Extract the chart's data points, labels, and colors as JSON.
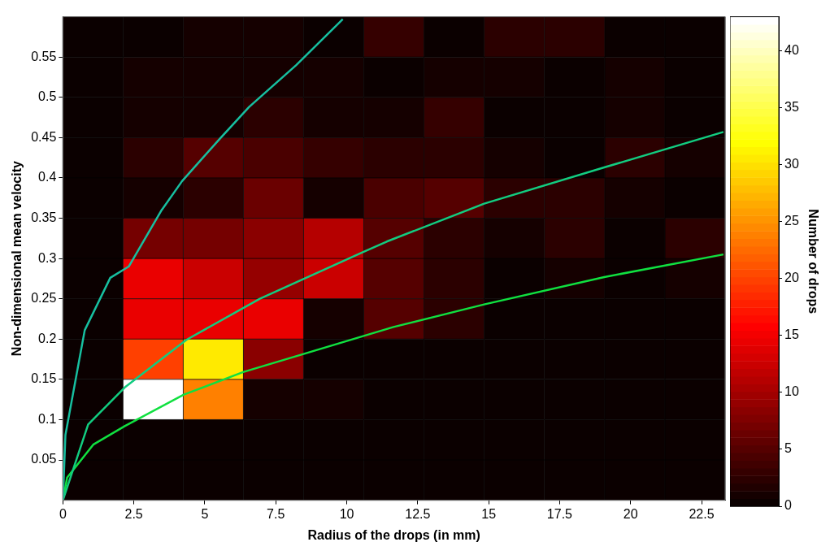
{
  "chart_data": {
    "type": "heatmap",
    "xlabel": "Radius of the drops (in mm)",
    "ylabel": "Non-dimensional mean velocity",
    "clabel": "Number of drops",
    "x": [
      1.06,
      3.18,
      5.3,
      7.42,
      9.54,
      11.66,
      13.78,
      15.9,
      18.03,
      20.15,
      22.27
    ],
    "y": [
      0.575,
      0.525,
      0.475,
      0.425,
      0.375,
      0.325,
      0.275,
      0.225,
      0.175,
      0.125,
      0.075,
      0.025
    ],
    "cells": [
      [
        0,
        0,
        1,
        1,
        0,
        3,
        0,
        2,
        2,
        0,
        0
      ],
      [
        0,
        1,
        1,
        1,
        1,
        0,
        1,
        1,
        0,
        1,
        0
      ],
      [
        0,
        1,
        1,
        2,
        1,
        1,
        3,
        0,
        0,
        1,
        0
      ],
      [
        0,
        2,
        5,
        4,
        3,
        2,
        2,
        1,
        0,
        2,
        1
      ],
      [
        0,
        1,
        2,
        6,
        1,
        4,
        5,
        2,
        2,
        1,
        0
      ],
      [
        0,
        7,
        7,
        8,
        11,
        5,
        2,
        1,
        2,
        0,
        2
      ],
      [
        0,
        14,
        12,
        9,
        12,
        5,
        2,
        0,
        1,
        0,
        1
      ],
      [
        0,
        14,
        14,
        14,
        1,
        5,
        2,
        0,
        0,
        0,
        0
      ],
      [
        0,
        20,
        31,
        8,
        0,
        0,
        0,
        0,
        0,
        0,
        0
      ],
      [
        0,
        43,
        24,
        1,
        1,
        0,
        0,
        0,
        0,
        0,
        0
      ],
      [
        0,
        0,
        0,
        0,
        0,
        0,
        0,
        0,
        0,
        0,
        0
      ],
      [
        0,
        0,
        0,
        0,
        0,
        0,
        0,
        0,
        0,
        0,
        0
      ]
    ],
    "grid": true,
    "clim": [
      0,
      43
    ],
    "cticks": [
      0,
      5,
      10,
      15,
      20,
      25,
      30,
      35,
      40
    ],
    "xlim": [
      0,
      23.33
    ],
    "xticks": [
      0,
      2.5,
      5,
      7.5,
      10,
      12.5,
      15,
      17.5,
      20,
      22.5
    ],
    "ylim": [
      0,
      0.6
    ],
    "yticks": [
      0.05,
      0.1,
      0.15,
      0.2,
      0.25,
      0.3,
      0.35,
      0.4,
      0.45,
      0.5,
      0.55
    ],
    "series": [
      {
        "type": "line",
        "color": "#17bfa0",
        "x": [
          0,
          0.09,
          0.77,
          1.67,
          2.32,
          3.46,
          4.2,
          5.54,
          6.56,
          8.22,
          9.86
        ],
        "values": [
          0,
          0.081,
          0.211,
          0.276,
          0.29,
          0.359,
          0.396,
          0.449,
          0.488,
          0.54,
          0.597
        ]
      },
      {
        "type": "line",
        "color": "#12cc80",
        "x": [
          0,
          0.89,
          2.18,
          4.35,
          6.94,
          10.58,
          11.41,
          14.84,
          19.07,
          23.27
        ],
        "values": [
          0,
          0.094,
          0.14,
          0.199,
          0.25,
          0.308,
          0.321,
          0.368,
          0.413,
          0.457
        ]
      },
      {
        "type": "line",
        "color": "#10e040",
        "x": [
          0,
          0.15,
          1.07,
          2.18,
          4.26,
          6.35,
          8.43,
          11.65,
          14.84,
          19.07,
          23.27
        ],
        "values": [
          0,
          0.028,
          0.069,
          0.092,
          0.131,
          0.159,
          0.181,
          0.215,
          0.243,
          0.277,
          0.305
        ]
      }
    ]
  }
}
